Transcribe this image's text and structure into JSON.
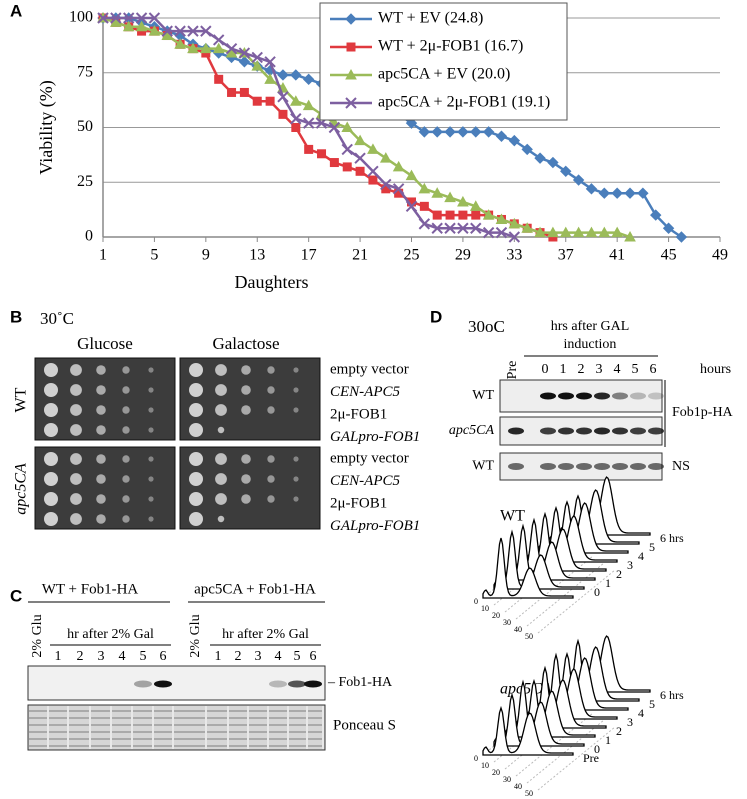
{
  "chart_data": {
    "type": "line",
    "panel_label": "A",
    "xlabel": "Daughters",
    "ylabel": "Viability (%)",
    "x": [
      1,
      2,
      3,
      4,
      5,
      6,
      7,
      8,
      9,
      10,
      11,
      12,
      13,
      14,
      15,
      16,
      17,
      18,
      19,
      20,
      21,
      22,
      23,
      24,
      25,
      26,
      27,
      28,
      29,
      30,
      31,
      32,
      33,
      34,
      35,
      36,
      37,
      38,
      39,
      40,
      41,
      42,
      43,
      44,
      45,
      46
    ],
    "xlim": [
      1,
      49
    ],
    "xticks": [
      1,
      5,
      9,
      13,
      17,
      21,
      25,
      29,
      33,
      37,
      41,
      45,
      49
    ],
    "ylim": [
      0,
      100
    ],
    "yticks": [
      0,
      25,
      50,
      75,
      100
    ],
    "grid": true,
    "legend": "upper center",
    "series": [
      {
        "name": "WT + EV (24.8)",
        "color": "#4a7ebb",
        "marker": "diamond",
        "values": [
          100,
          100,
          100,
          98,
          96,
          94,
          92,
          88,
          86,
          84,
          82,
          80,
          78,
          76,
          74,
          74,
          72,
          70,
          66,
          64,
          62,
          62,
          60,
          56,
          52,
          48,
          48,
          48,
          48,
          48,
          48,
          46,
          44,
          40,
          36,
          34,
          30,
          26,
          22,
          20,
          20,
          20,
          20,
          10,
          4,
          0
        ]
      },
      {
        "name": "WT + 2μ-FOB1 (16.7)",
        "color": "#e0393e",
        "marker": "square",
        "values": [
          100,
          98,
          96,
          94,
          94,
          92,
          88,
          86,
          84,
          72,
          66,
          66,
          62,
          62,
          56,
          50,
          40,
          38,
          34,
          32,
          30,
          26,
          22,
          20,
          16,
          14,
          10,
          10,
          10,
          10,
          10,
          8,
          6,
          4,
          2,
          0,
          null,
          null,
          null,
          null,
          null,
          null,
          null,
          null,
          null,
          null
        ]
      },
      {
        "name": "apc5CA + EV (20.0)",
        "color": "#9bbb59",
        "marker": "triangle",
        "values": [
          100,
          98,
          96,
          96,
          94,
          92,
          88,
          86,
          86,
          86,
          84,
          84,
          78,
          72,
          68,
          62,
          60,
          56,
          52,
          50,
          44,
          40,
          36,
          32,
          28,
          22,
          20,
          18,
          16,
          14,
          10,
          8,
          6,
          4,
          2,
          2,
          2,
          2,
          2,
          2,
          2,
          0,
          null,
          null,
          null,
          null
        ]
      },
      {
        "name": "apc5CA + 2μ-FOB1 (19.1)",
        "color": "#7d5fa0",
        "marker": "cross",
        "values": [
          100,
          100,
          100,
          100,
          100,
          94,
          94,
          94,
          94,
          90,
          86,
          84,
          82,
          80,
          64,
          54,
          52,
          52,
          50,
          40,
          36,
          30,
          24,
          22,
          14,
          6,
          4,
          4,
          4,
          4,
          2,
          2,
          0,
          null,
          null,
          null,
          null,
          null,
          null,
          null,
          null,
          null,
          null,
          null,
          null,
          null
        ]
      }
    ]
  },
  "panel_b": {
    "panel_label": "B",
    "temperature": "30˚C",
    "media": [
      "Glucose",
      "Galactose"
    ],
    "strains": [
      "WT",
      "apc5CA"
    ],
    "plasmids": [
      "empty vector",
      "CEN-APC5",
      "2μ-FOB1",
      "GALpro-FOB1"
    ]
  },
  "panel_c": {
    "panel_label": "C",
    "groups": [
      "WT + Fob1-HA",
      "apc5CA + Fob1-HA"
    ],
    "glu_lane": "2% Glu",
    "gal_header": "hr after 2% Gal",
    "lanes": [
      "1",
      "2",
      "3",
      "4",
      "5",
      "6"
    ],
    "band_label": "– Fob1-HA",
    "loading_label": "Ponceau S"
  },
  "panel_d": {
    "panel_label": "D",
    "temperature": "30oC",
    "header_lines": [
      "hrs after GAL",
      "induction"
    ],
    "lanes": [
      "Pre",
      "0",
      "1",
      "2",
      "3",
      "4",
      "5",
      "6"
    ],
    "unit": "hours",
    "rows": [
      "WT",
      "apc5CA",
      "WT"
    ],
    "row_labels": [
      "Fob1p-HA",
      "NS"
    ],
    "flow": {
      "strains": [
        "WT",
        "apc5CA"
      ],
      "timepoints": [
        "Pre",
        "0",
        "1",
        "2",
        "3",
        "4",
        "5",
        "6 hrs"
      ],
      "x_ticks": [
        "0",
        "10",
        "20",
        "30",
        "40",
        "50"
      ]
    }
  }
}
